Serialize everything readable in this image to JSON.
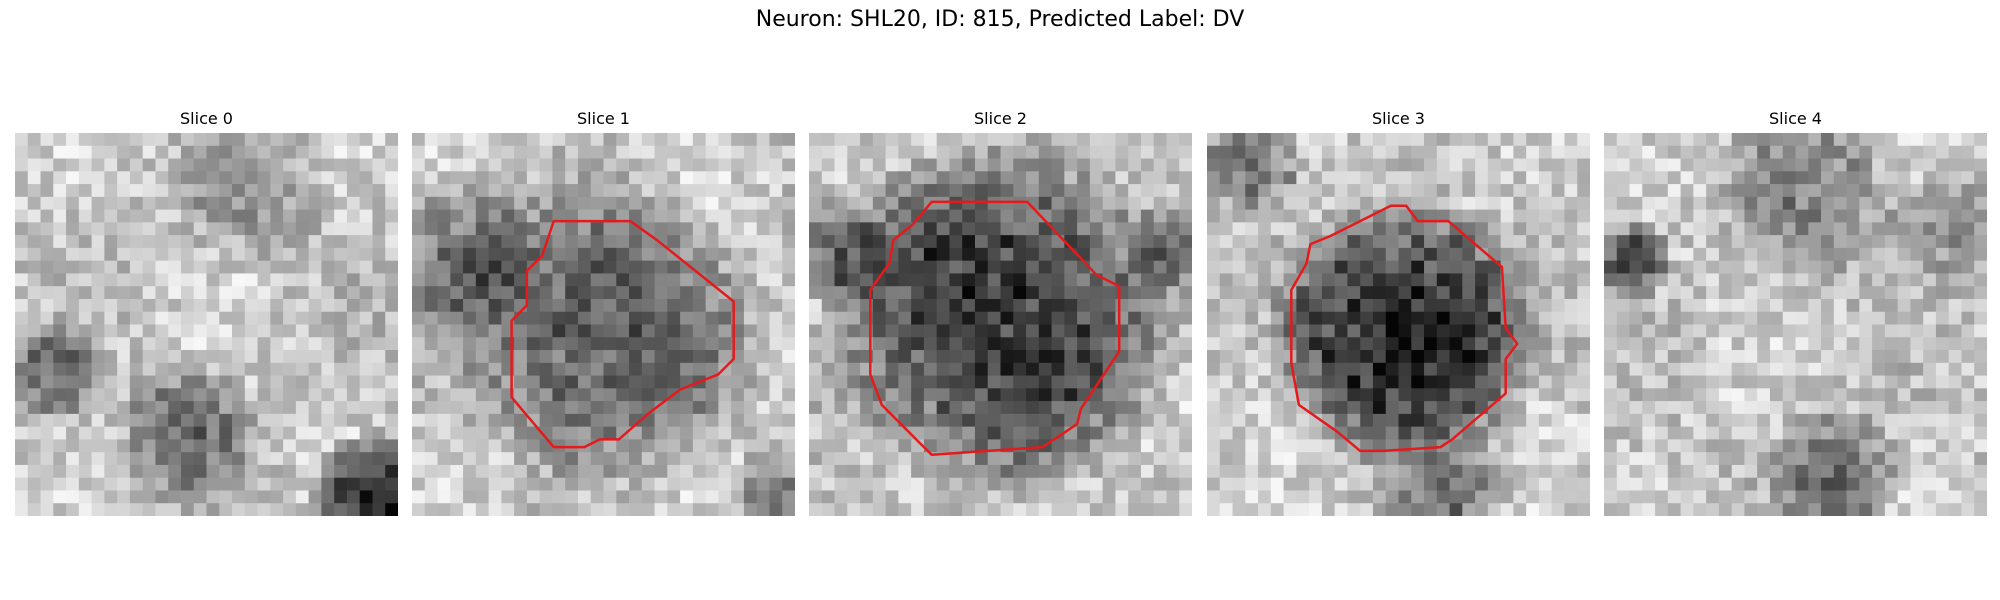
{
  "figure": {
    "title": "Neuron: SHL20, ID: 815, Predicted Label: DV"
  },
  "panels": [
    {
      "title": "Slice 0",
      "has_contour": false
    },
    {
      "title": "Slice 1",
      "has_contour": true
    },
    {
      "title": "Slice 2",
      "has_contour": true
    },
    {
      "title": "Slice 3",
      "has_contour": true
    },
    {
      "title": "Slice 4",
      "has_contour": false
    }
  ],
  "colors": {
    "contour": "#e41a1c",
    "background": "#ffffff"
  },
  "image_style": {
    "colormap": "grayscale",
    "grid_cells": 30
  }
}
